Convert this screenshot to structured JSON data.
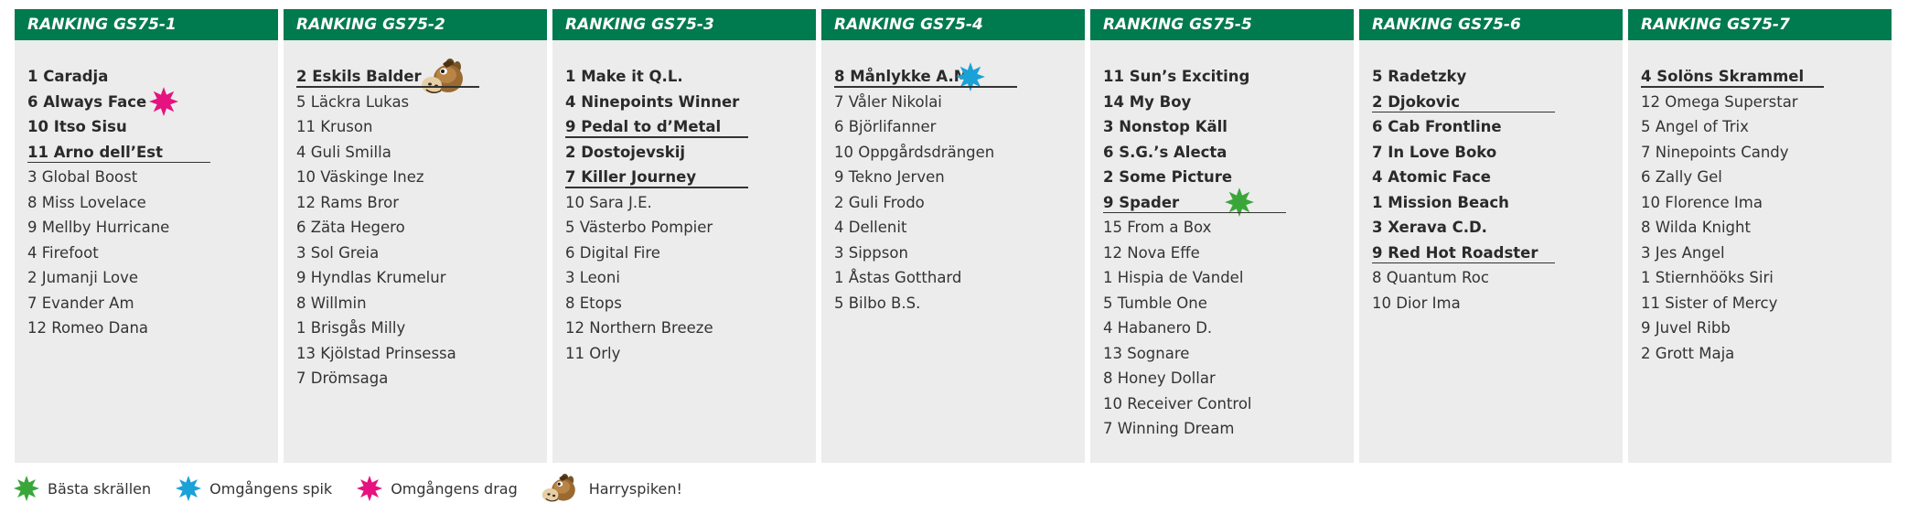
{
  "colors": {
    "header_bg": "#007a4f",
    "column_bg": "#ececec",
    "star_green": "#3aa63a",
    "star_blue": "#1aa1d8",
    "star_pink": "#e5127f"
  },
  "columns": [
    {
      "title": "RANKING GS75-1",
      "rows": [
        {
          "text": "1 Caradja",
          "bold": true
        },
        {
          "text": "6 Always Face",
          "bold": true,
          "marker": "pink-star-icon"
        },
        {
          "text": "10 Itso Sisu",
          "bold": true
        },
        {
          "text": "11 Arno dell’Est",
          "bold": true,
          "underline": true
        },
        {
          "text": "3 Global Boost"
        },
        {
          "text": "8 Miss Lovelace"
        },
        {
          "text": "9 Mellby Hurricane"
        },
        {
          "text": "4 Firefoot"
        },
        {
          "text": "2 Jumanji Love"
        },
        {
          "text": "7 Evander Am"
        },
        {
          "text": "12 Romeo Dana"
        }
      ]
    },
    {
      "title": "RANKING GS75-2",
      "rows": [
        {
          "text": "2 Eskils Balder",
          "bold": true,
          "underline": true,
          "marker": "harry-horse-icon"
        },
        {
          "text": "5 Läckra Lukas"
        },
        {
          "text": "11 Kruson"
        },
        {
          "text": "4 Guli Smilla"
        },
        {
          "text": "10 Väskinge Inez"
        },
        {
          "text": "12 Rams Bror"
        },
        {
          "text": "6 Zäta Hegero"
        },
        {
          "text": "3 Sol Greia"
        },
        {
          "text": "9 Hyndlas Krumelur"
        },
        {
          "text": "8 Willmin"
        },
        {
          "text": "1 Brisgås Milly"
        },
        {
          "text": "13 Kjölstad Prinsessa"
        },
        {
          "text": "7 Drömsaga"
        }
      ]
    },
    {
      "title": "RANKING GS75-3",
      "rows": [
        {
          "text": "1 Make it Q.L.",
          "bold": true
        },
        {
          "text": "4 Ninepoints Winner",
          "bold": true
        },
        {
          "text": "9 Pedal to d’Metal",
          "bold": true,
          "underline": true
        },
        {
          "text": "2 Dostojevskij",
          "bold": true
        },
        {
          "text": "7 Killer Journey",
          "bold": true,
          "underline": true
        },
        {
          "text": "10 Sara J.E."
        },
        {
          "text": "5 Västerbo Pompier"
        },
        {
          "text": "6 Digital Fire"
        },
        {
          "text": "3 Leoni"
        },
        {
          "text": "8 Etops"
        },
        {
          "text": "12 Northern Breeze"
        },
        {
          "text": "11 Orly"
        }
      ]
    },
    {
      "title": "RANKING GS75-4",
      "rows": [
        {
          "text": "8 Månlykke A.M.",
          "bold": true,
          "underline": true,
          "marker": "blue-star-icon"
        },
        {
          "text": "7 Våler Nikolai"
        },
        {
          "text": "6 Björlifanner"
        },
        {
          "text": "10 Oppgårdsdrängen"
        },
        {
          "text": "9 Tekno Jerven"
        },
        {
          "text": "2 Guli Frodo"
        },
        {
          "text": "4 Dellenit"
        },
        {
          "text": "3 Sippson"
        },
        {
          "text": "1 Åstas Gotthard"
        },
        {
          "text": "5 Bilbo B.S."
        }
      ]
    },
    {
      "title": "RANKING GS75-5",
      "rows": [
        {
          "text": "11 Sun’s Exciting",
          "bold": true
        },
        {
          "text": "14 My Boy",
          "bold": true
        },
        {
          "text": "3 Nonstop Käll",
          "bold": true
        },
        {
          "text": "6 S.G.’s Alecta",
          "bold": true
        },
        {
          "text": "2 Some Picture",
          "bold": true
        },
        {
          "text": "9 Spader",
          "bold": true,
          "underline": true,
          "marker": "green-star-icon"
        },
        {
          "text": "15 From a Box"
        },
        {
          "text": "12 Nova Effe"
        },
        {
          "text": "1 Hispia de Vandel"
        },
        {
          "text": "5 Tumble One"
        },
        {
          "text": "4 Habanero D."
        },
        {
          "text": "13 Sognare"
        },
        {
          "text": "8 Honey Dollar"
        },
        {
          "text": "10 Receiver Control"
        },
        {
          "text": "7 Winning Dream"
        }
      ]
    },
    {
      "title": "RANKING GS75-6",
      "rows": [
        {
          "text": "5 Radetzky",
          "bold": true
        },
        {
          "text": "2 Djokovic",
          "bold": true,
          "underline": true
        },
        {
          "text": "6 Cab Frontline",
          "bold": true
        },
        {
          "text": "7 In Love Boko",
          "bold": true
        },
        {
          "text": "4 Atomic Face",
          "bold": true
        },
        {
          "text": "1 Mission Beach",
          "bold": true
        },
        {
          "text": "3 Xerava C.D.",
          "bold": true
        },
        {
          "text": "9 Red Hot Roadster",
          "bold": true,
          "underline": true
        },
        {
          "text": "8 Quantum Roc"
        },
        {
          "text": "10 Dior Ima"
        }
      ]
    },
    {
      "title": "RANKING GS75-7",
      "rows": [
        {
          "text": "4 Solöns Skrammel",
          "bold": true,
          "underline": true
        },
        {
          "text": "12 Omega Superstar"
        },
        {
          "text": "5 Angel of Trix"
        },
        {
          "text": "7 Ninepoints Candy"
        },
        {
          "text": "6 Zally Gel"
        },
        {
          "text": "10 Florence Ima"
        },
        {
          "text": "8 Wilda Knight"
        },
        {
          "text": "3 Jes Angel"
        },
        {
          "text": "1 Stiernhööks Siri"
        },
        {
          "text": "11 Sister of Mercy"
        },
        {
          "text": "9 Juvel Ribb"
        },
        {
          "text": "2 Grott Maja"
        }
      ]
    }
  ],
  "legend": [
    {
      "icon": "green-star-icon",
      "label": "Bästa skrällen"
    },
    {
      "icon": "blue-star-icon",
      "label": "Omgångens spik"
    },
    {
      "icon": "pink-star-icon",
      "label": "Omgångens drag"
    },
    {
      "icon": "harry-horse-icon",
      "label": "Harryspiken!"
    }
  ]
}
